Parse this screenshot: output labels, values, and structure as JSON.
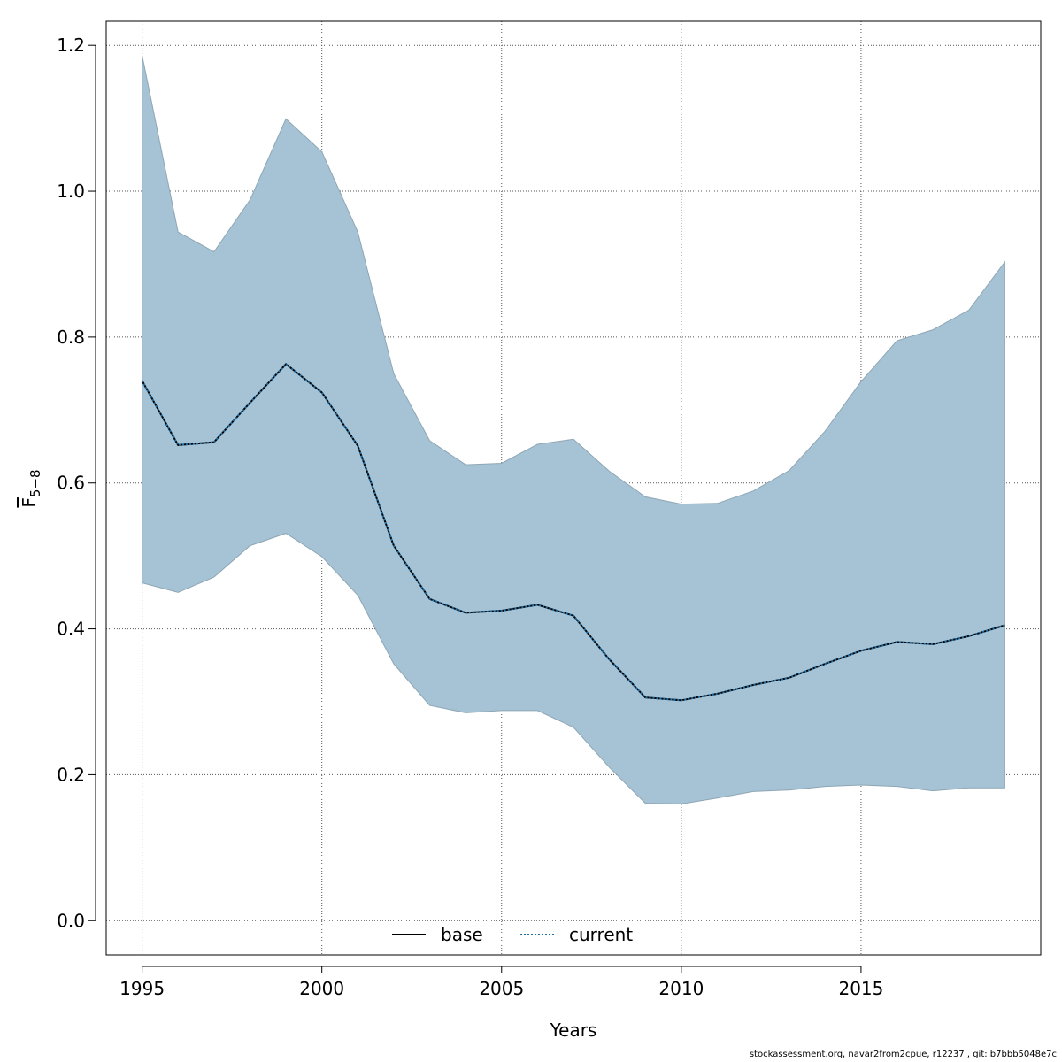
{
  "chart_data": {
    "type": "area",
    "xlabel": "Years",
    "ylabel": {
      "main": "F",
      "sub": "5−8"
    },
    "xlim": [
      1994,
      2020
    ],
    "ylim": [
      -0.047,
      1.233
    ],
    "x_ticks": [
      1995,
      2000,
      2005,
      2010,
      2015
    ],
    "y_ticks": [
      "0.0",
      "0.2",
      "0.4",
      "0.6",
      "0.8",
      "1.0",
      "1.2"
    ],
    "grid": true,
    "legend_position": "bottom-center",
    "x": [
      1995,
      1996,
      1997,
      1998,
      1999,
      2000,
      2001,
      2002,
      2003,
      2004,
      2005,
      2006,
      2007,
      2008,
      2009,
      2010,
      2011,
      2012,
      2013,
      2014,
      2015,
      2016,
      2017,
      2018,
      2019
    ],
    "band": {
      "upper": [
        1.186,
        0.944,
        0.917,
        0.988,
        1.099,
        1.054,
        0.944,
        0.75,
        0.658,
        0.625,
        0.627,
        0.653,
        0.66,
        0.616,
        0.581,
        0.571,
        0.572,
        0.589,
        0.617,
        0.671,
        0.739,
        0.795,
        0.81,
        0.837,
        0.903
      ],
      "lower": [
        0.463,
        0.45,
        0.471,
        0.514,
        0.531,
        0.499,
        0.446,
        0.352,
        0.295,
        0.285,
        0.288,
        0.288,
        0.265,
        0.21,
        0.161,
        0.16,
        0.168,
        0.177,
        0.179,
        0.184,
        0.186,
        0.184,
        0.178,
        0.182,
        0.182
      ],
      "color": "#a5c3d4",
      "edge_color": "#8ea6b5"
    },
    "series": [
      {
        "name": "base",
        "values": [
          0.74,
          0.652,
          0.656,
          0.71,
          0.763,
          0.724,
          0.651,
          0.514,
          0.441,
          0.422,
          0.425,
          0.433,
          0.418,
          0.358,
          0.306,
          0.302,
          0.311,
          0.323,
          0.333,
          0.352,
          0.37,
          0.382,
          0.379,
          0.39,
          0.405
        ],
        "color": "#000000",
        "style": "solid"
      },
      {
        "name": "current",
        "values": [
          0.74,
          0.652,
          0.656,
          0.71,
          0.763,
          0.724,
          0.651,
          0.514,
          0.441,
          0.422,
          0.425,
          0.433,
          0.418,
          0.358,
          0.306,
          0.302,
          0.311,
          0.323,
          0.333,
          0.352,
          0.37,
          0.382,
          0.379,
          0.39,
          0.405
        ],
        "color": "#1f6fa8",
        "style": "dotted"
      }
    ]
  },
  "footer": "stockassessment.org, navar2from2cpue, r12237 , git: b7bbb5048e7c"
}
